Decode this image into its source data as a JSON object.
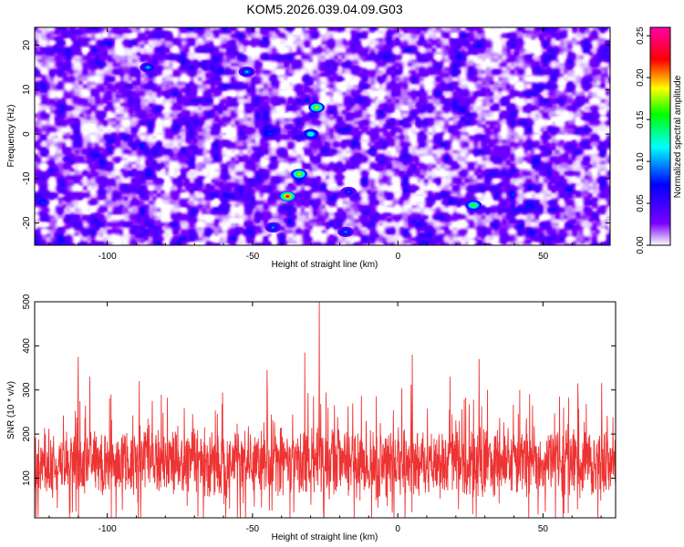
{
  "figure_title": "KOM5.2026.039.04.09.G03",
  "chart_data": [
    {
      "type": "heatmap",
      "title": "KOM5.2026.039.04.09.G03",
      "xlabel": "Height of straight line (km)",
      "ylabel": "Frequency (Hz)",
      "xlim": [
        -125,
        73
      ],
      "ylim": [
        -25,
        24
      ],
      "xticks": [
        -100,
        -50,
        0,
        50
      ],
      "yticks": [
        -20,
        -10,
        0,
        10,
        20
      ],
      "xtick_labels": [
        "-100",
        "-50",
        "0",
        "50"
      ],
      "ytick_labels": [
        "-20",
        "-10",
        "0",
        "10",
        "20"
      ],
      "colorbar": {
        "label": "Normalized spectral amplitude",
        "range": [
          0.0,
          0.26
        ],
        "ticks": [
          0.0,
          0.05,
          0.1,
          0.15,
          0.2,
          0.25
        ],
        "tick_labels": [
          "0.00",
          "0.05",
          "0.10",
          "0.15",
          "0.20",
          "0.25"
        ],
        "colors": [
          "#ffffff",
          "#7b00ff",
          "#0000ff",
          "#00ffff",
          "#00ff00",
          "#ffff00",
          "#ff0000",
          "#ff00aa"
        ]
      },
      "hotspots": [
        {
          "x": -38,
          "y": -14,
          "value": 0.24
        },
        {
          "x": -34,
          "y": -9,
          "value": 0.19
        },
        {
          "x": -28,
          "y": 6,
          "value": 0.19
        },
        {
          "x": -30,
          "y": 0,
          "value": 0.14
        },
        {
          "x": 26,
          "y": -16,
          "value": 0.17
        },
        {
          "x": -86,
          "y": 15,
          "value": 0.11
        },
        {
          "x": -52,
          "y": 14,
          "value": 0.11
        },
        {
          "x": -17,
          "y": -13,
          "value": 0.09
        },
        {
          "x": -43,
          "y": -21,
          "value": 0.1
        },
        {
          "x": -18,
          "y": -22,
          "value": 0.1
        }
      ]
    },
    {
      "type": "line",
      "xlabel": "Height of straight line (km)",
      "ylabel": "SNR (10 * v/v)",
      "xlim": [
        -125,
        75
      ],
      "ylim": [
        10,
        500
      ],
      "xticks": [
        -100,
        -50,
        0,
        50
      ],
      "yticks": [
        100,
        200,
        300,
        400,
        500
      ],
      "xtick_labels": [
        "-100",
        "-50",
        "0",
        "50"
      ],
      "ytick_labels": [
        "100",
        "200",
        "300",
        "400",
        "500"
      ],
      "color": "#ee3333",
      "series_description": "dense noisy SNR trace sampled every 0.1 km, baseline ~110-160",
      "peaks": [
        {
          "x": -27,
          "y": 500
        },
        {
          "x": -32,
          "y": 385
        },
        {
          "x": 5,
          "y": 380
        },
        {
          "x": 28,
          "y": 370
        },
        {
          "x": -110,
          "y": 375
        },
        {
          "x": -45,
          "y": 345
        },
        {
          "x": -106,
          "y": 330
        },
        {
          "x": -89,
          "y": 320
        },
        {
          "x": 62,
          "y": 315
        },
        {
          "x": 18,
          "y": 330
        },
        {
          "x": 42,
          "y": 300
        }
      ]
    }
  ]
}
